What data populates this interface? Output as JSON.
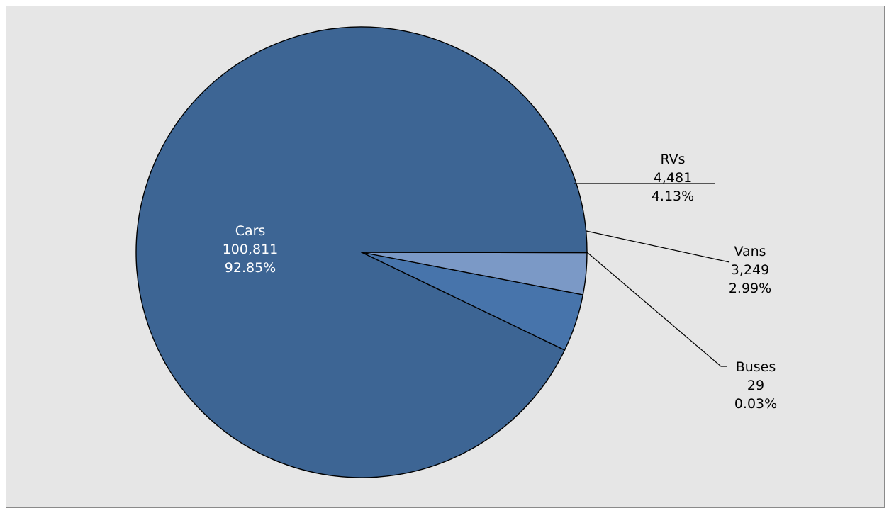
{
  "chart_data": {
    "type": "pie",
    "title": "",
    "slices": [
      {
        "label": "Cars",
        "value": 100811,
        "value_text": "100,811",
        "percent_text": "92.85%",
        "color": "#3d6594"
      },
      {
        "label": "RVs",
        "value": 4481,
        "value_text": "4,481",
        "percent_text": "4.13%",
        "color": "#4774ab"
      },
      {
        "label": "Vans",
        "value": 3249,
        "value_text": "3,249",
        "percent_text": "2.99%",
        "color": "#7b99c6"
      },
      {
        "label": "Buses",
        "value": 29,
        "value_text": "29",
        "percent_text": "0.03%",
        "color": "#4774ab"
      }
    ],
    "start_direction": "east",
    "direction": "counterclockwise",
    "legend": "none",
    "background_color": "#e6e6e6"
  }
}
